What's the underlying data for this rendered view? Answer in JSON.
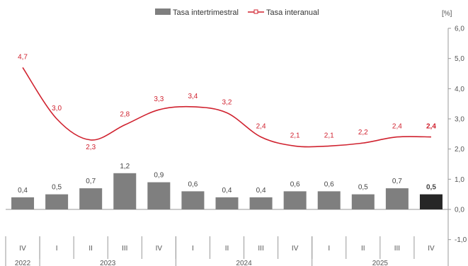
{
  "chart_data": {
    "type": "bar",
    "unit": "[%]",
    "ylim": [
      -1,
      6
    ],
    "yticks": [
      "6,0",
      "5,0",
      "4,0",
      "3,0",
      "2,0",
      "1,0",
      "0,0",
      "-1,0"
    ],
    "quarters": [
      "IV",
      "I",
      "II",
      "III",
      "IV",
      "I",
      "II",
      "III",
      "IV",
      "I",
      "II",
      "III",
      "IV"
    ],
    "years": [
      "2022",
      "2023",
      "2024",
      "2025"
    ],
    "series": [
      {
        "name": "Tasa intertrimestral",
        "kind": "bar",
        "color": "#7f7f7f",
        "last_color": "#262626",
        "values": [
          0.4,
          0.5,
          0.7,
          1.2,
          0.9,
          0.6,
          0.4,
          0.4,
          0.6,
          0.6,
          0.5,
          0.7,
          0.5
        ],
        "labels": [
          "0,4",
          "0,5",
          "0,7",
          "1,2",
          "0,9",
          "0,6",
          "0,4",
          "0,4",
          "0,6",
          "0,6",
          "0,5",
          "0,7",
          "0,5"
        ]
      },
      {
        "name": "Tasa interanual",
        "kind": "line",
        "color": "#d0222f",
        "values": [
          4.7,
          3.0,
          2.3,
          2.8,
          3.3,
          3.4,
          3.2,
          2.4,
          2.1,
          2.1,
          2.2,
          2.4,
          2.4
        ],
        "labels": [
          "4,7",
          "3,0",
          "2,3",
          "2,8",
          "3,3",
          "3,4",
          "3,2",
          "2,4",
          "2,1",
          "2,1",
          "2,2",
          "2,4",
          "2,4"
        ]
      }
    ],
    "grid": false,
    "legend_position": "top"
  }
}
